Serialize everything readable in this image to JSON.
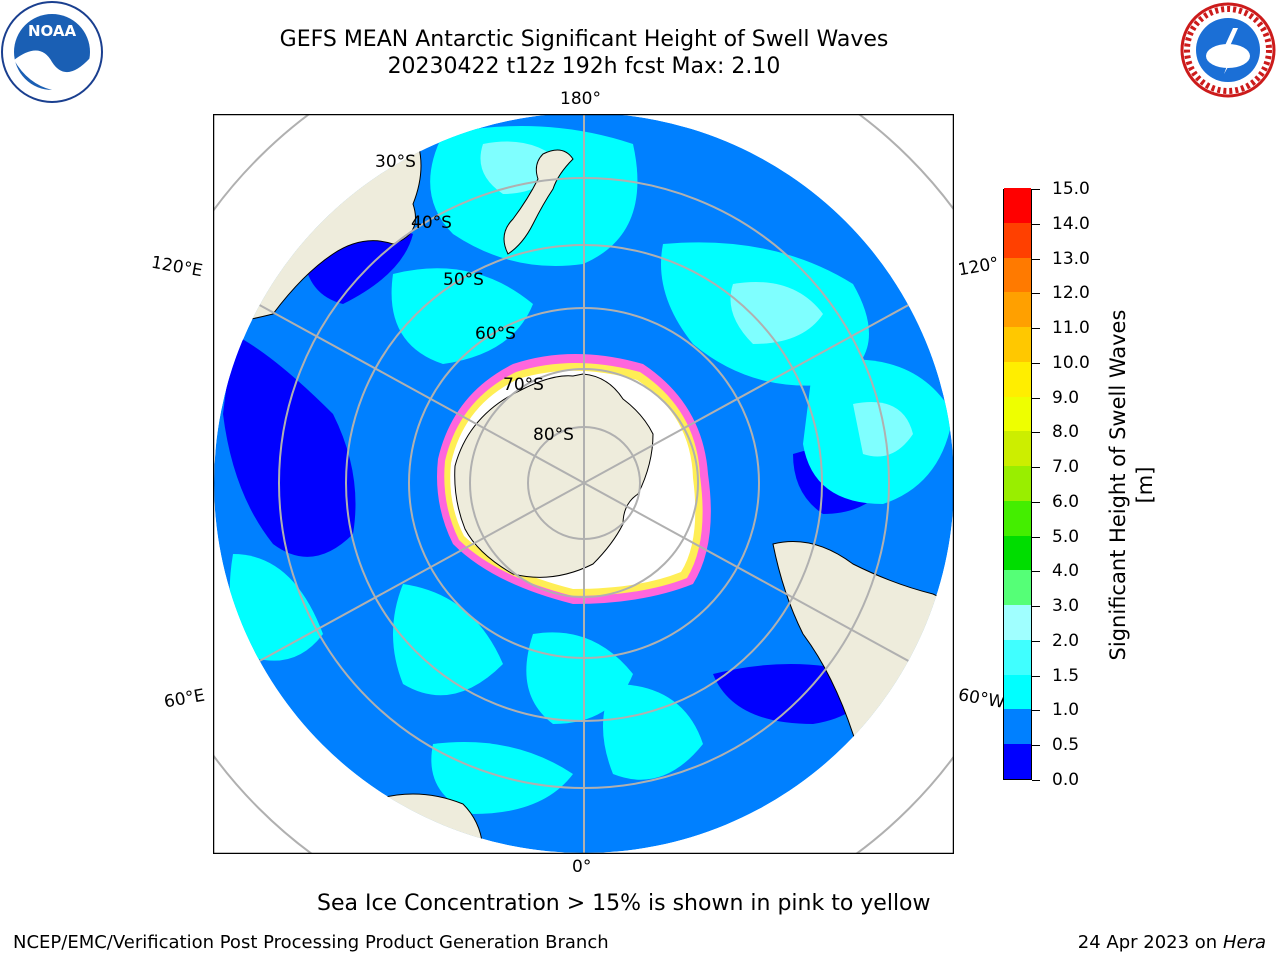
{
  "header": {
    "title": "GEFS MEAN Antarctic Significant Height of Swell Waves",
    "subtitle": "20230422 t12z 192h fcst   Max: 2.10"
  },
  "logos": {
    "left": {
      "text": "NOAA",
      "icon": "noaa-logo"
    },
    "right": {
      "icon": "national-weather-service-logo",
      "ring_text": "NATIONAL WEATHER SERVICE"
    }
  },
  "map": {
    "projection": "south-polar-stereographic",
    "longitude_labels": {
      "top": "180°",
      "bottom": "0°",
      "left_upper": "120°E",
      "left_lower": "60°E",
      "right_upper": "120°",
      "right_lower": "60°W"
    },
    "latitude_labels": [
      "30°S",
      "40°S",
      "50°S",
      "60°S",
      "70°S",
      "80°S"
    ],
    "colors": {
      "land": "#eeecdc",
      "ocean_low": "#0000ff",
      "ocean_mid": "#0080ff",
      "ocean_high": "#00ffff",
      "ocean_higher": "#7fffff",
      "ice_edge": "#ff44cc",
      "ice_inner": "#ffee55",
      "grid": "#b0b0b0"
    }
  },
  "colorbar": {
    "title": "Significant Height of Swell Waves [m]",
    "min": 0.0,
    "max": 15.0,
    "ticks": [
      "0.0",
      "0.5",
      "1.0",
      "1.5",
      "2.0",
      "3.0",
      "4.0",
      "5.0",
      "6.0",
      "7.0",
      "8.0",
      "9.0",
      "10.0",
      "11.0",
      "12.0",
      "13.0",
      "14.0",
      "15.0"
    ],
    "colors": [
      "#0000ff",
      "#0080ff",
      "#00ffff",
      "#40ffff",
      "#a0ffff",
      "#55ff77",
      "#00dd00",
      "#44ee00",
      "#99ee00",
      "#ccee00",
      "#eeff00",
      "#ffee00",
      "#ffc800",
      "#ffa000",
      "#ff7a00",
      "#ff4000",
      "#ff0000"
    ]
  },
  "annotation": "Sea Ice Concentration > 15% is shown in pink to yellow",
  "footer": {
    "left": "NCEP/EMC/Verification Post Processing Product Generation Branch",
    "right_date": "24 Apr 2023 on ",
    "right_machine": "Hera"
  }
}
